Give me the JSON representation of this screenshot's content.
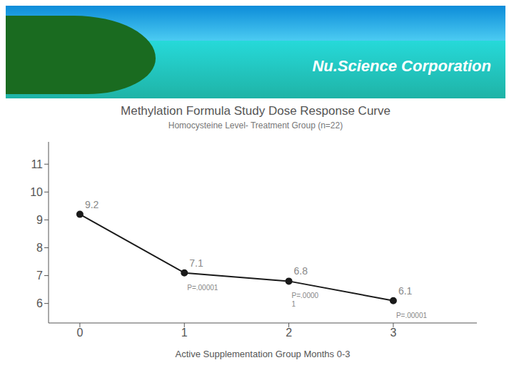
{
  "chart_data": {
    "type": "line",
    "title": "Methylation Formula Study Dose Response Curve",
    "subtitle": "Homocysteine Level- Treatment Group (n=22)",
    "xlabel": "Active Supplementation Group Months 0-3",
    "x": [
      0,
      1,
      2,
      3
    ],
    "values": [
      9.2,
      7.1,
      6.8,
      6.1
    ],
    "color": "#1a1a1a",
    "xlim": [
      -0.3,
      3.8
    ],
    "ylim": [
      5.3,
      11.8
    ],
    "xticks": [
      0,
      1,
      2,
      3
    ],
    "yticks": [
      6,
      7,
      8,
      9,
      10,
      11
    ],
    "grid": false,
    "data_labels": true,
    "annotations": [
      {
        "lines": [
          "Nu.Science Corporation"
        ]
      },
      {
        "x": 1,
        "lines": [
          "P=.00001"
        ]
      },
      {
        "x": 2,
        "lines": [
          "P=.0000",
          "1"
        ]
      },
      {
        "x": 3,
        "lines": [
          "P=.00001"
        ]
      }
    ]
  }
}
